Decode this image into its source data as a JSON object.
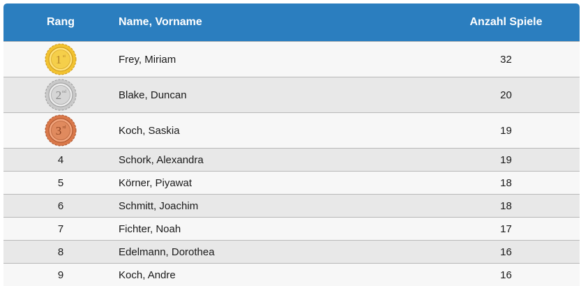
{
  "table": {
    "headers": {
      "rank": "Rang",
      "name": "Name, Vorname",
      "games": "Anzahl Spiele"
    },
    "medals": {
      "gold": {
        "label": "1st",
        "num": "1",
        "suffix": "st",
        "color": "#f2c230",
        "dark": "#c9961a",
        "light": "#ffe27a"
      },
      "silver": {
        "label": "2nd",
        "num": "2",
        "suffix": "nd",
        "color": "#c9c9c9",
        "dark": "#9a9a9a",
        "light": "#ececec"
      },
      "bronze": {
        "label": "3rd",
        "num": "3",
        "suffix": "rd",
        "color": "#d9784a",
        "dark": "#a8532c",
        "light": "#f2a47c"
      }
    },
    "rows": [
      {
        "rank": "1",
        "name": "Frey, Miriam",
        "games": "32"
      },
      {
        "rank": "2",
        "name": "Blake, Duncan",
        "games": "20"
      },
      {
        "rank": "3",
        "name": "Koch, Saskia",
        "games": "19"
      },
      {
        "rank": "4",
        "name": "Schork, Alexandra",
        "games": "19"
      },
      {
        "rank": "5",
        "name": "Körner, Piyawat",
        "games": "18"
      },
      {
        "rank": "6",
        "name": "Schmitt, Joachim",
        "games": "18"
      },
      {
        "rank": "7",
        "name": "Fichter, Noah",
        "games": "17"
      },
      {
        "rank": "8",
        "name": "Edelmann, Dorothea",
        "games": "16"
      },
      {
        "rank": "9",
        "name": "Koch, Andre",
        "games": "16"
      }
    ]
  }
}
